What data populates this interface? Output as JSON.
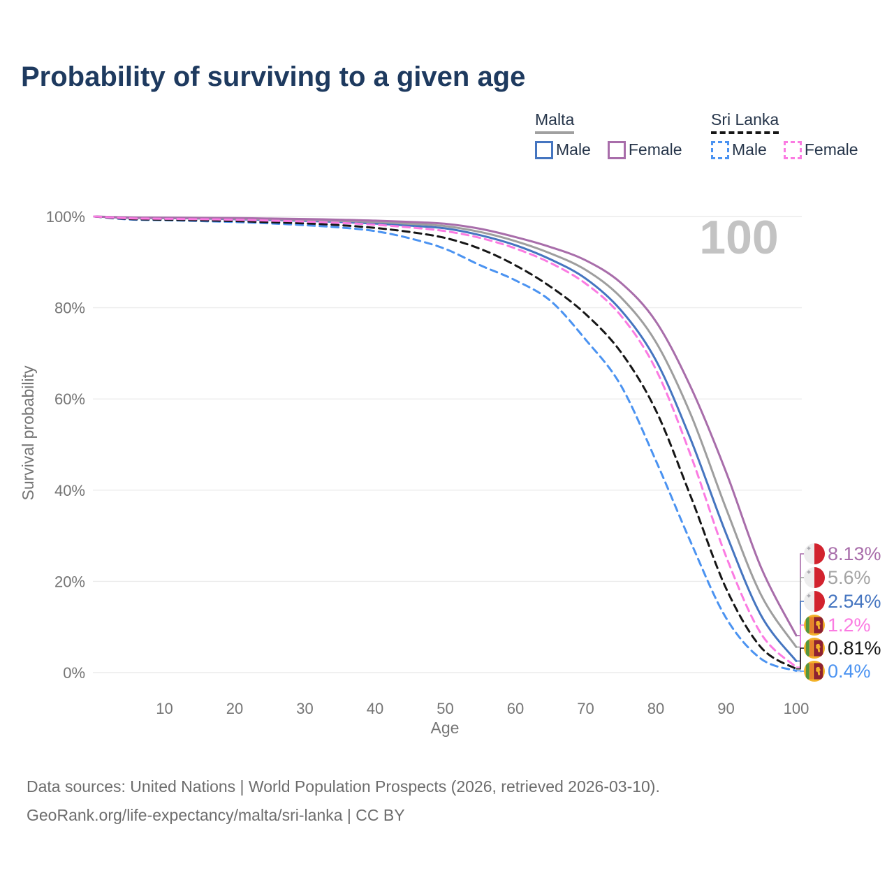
{
  "title": "Probability of surviving to a given age",
  "watermark_age": "100",
  "legend": {
    "groups": [
      {
        "label": "Malta",
        "underline": "solid-gray",
        "items": [
          {
            "label": "Male",
            "color": "#4575c0",
            "dash": false
          },
          {
            "label": "Female",
            "color": "#a86daa",
            "dash": false
          }
        ]
      },
      {
        "label": "Sri Lanka",
        "underline": "dashed-black",
        "items": [
          {
            "label": "Male",
            "color": "#4b93f1",
            "dash": true
          },
          {
            "label": "Female",
            "color": "#fb7be2",
            "dash": true
          }
        ]
      }
    ]
  },
  "axes": {
    "y_label": "Survival probability",
    "x_label": "Age",
    "y_ticks": [
      "100%",
      "80%",
      "60%",
      "40%",
      "20%",
      "0%"
    ],
    "x_ticks": [
      10,
      20,
      30,
      40,
      50,
      60,
      70,
      80,
      90,
      100
    ]
  },
  "end_labels": [
    {
      "value": "8.13%",
      "color": "#a86daa",
      "flag": "malta"
    },
    {
      "value": "5.6%",
      "color": "#a3a3a3",
      "flag": "malta"
    },
    {
      "value": "2.54%",
      "color": "#4575c0",
      "flag": "malta"
    },
    {
      "value": "1.2%",
      "color": "#fb7be2",
      "flag": "sri-lanka"
    },
    {
      "value": "0.81%",
      "color": "#161616",
      "flag": "sri-lanka"
    },
    {
      "value": "0.4%",
      "color": "#4b93f1",
      "flag": "sri-lanka"
    }
  ],
  "footer": {
    "line1": "Data sources: United Nations | World Population Prospects (2026, retrieved 2026-03-10).",
    "line2": "GeoRank.org/life-expectancy/malta/sri-lanka | CC BY"
  },
  "chart_data": {
    "type": "line",
    "title": "Probability of surviving to a given age",
    "xlabel": "Age",
    "ylabel": "Survival probability",
    "xlim": [
      0,
      100
    ],
    "ylim": [
      0,
      100
    ],
    "grid": "horizontal",
    "legend_position": "top-right",
    "annotation": "values shown at age 100",
    "x": [
      0,
      5,
      10,
      15,
      20,
      25,
      30,
      35,
      40,
      45,
      50,
      55,
      60,
      65,
      70,
      75,
      80,
      85,
      90,
      95,
      100
    ],
    "series": [
      {
        "name": "Malta Female",
        "color": "#a86daa",
        "style": "solid",
        "end_value_at_100": "8.13%",
        "values": [
          100,
          99.8,
          99.75,
          99.7,
          99.65,
          99.55,
          99.45,
          99.3,
          99.1,
          98.8,
          98.4,
          97.3,
          95.5,
          93.3,
          90.4,
          85.5,
          77.0,
          62.5,
          44.0,
          23.0,
          8.13
        ]
      },
      {
        "name": "Malta",
        "color": "#9e9e9e",
        "style": "solid",
        "end_value_at_100": "5.6%",
        "values": [
          100,
          99.75,
          99.7,
          99.6,
          99.5,
          99.4,
          99.25,
          99.05,
          98.8,
          98.4,
          97.9,
          96.6,
          94.6,
          91.9,
          88.3,
          82.3,
          72.5,
          56.5,
          36.0,
          17.0,
          5.6
        ]
      },
      {
        "name": "Malta Male",
        "color": "#4575c0",
        "style": "solid",
        "end_value_at_100": "2.54%",
        "values": [
          100,
          99.7,
          99.65,
          99.55,
          99.4,
          99.25,
          99.05,
          98.8,
          98.45,
          98.0,
          97.4,
          95.9,
          93.7,
          90.6,
          86.4,
          79.5,
          68.5,
          51.0,
          30.5,
          12.5,
          2.54
        ]
      },
      {
        "name": "Sri Lanka Female",
        "color": "#fb7be2",
        "style": "dashed",
        "end_value_at_100": "1.2%",
        "values": [
          100,
          99.6,
          99.5,
          99.4,
          99.3,
          99.1,
          98.9,
          98.6,
          98.2,
          97.6,
          96.8,
          95.3,
          93.0,
          89.8,
          85.3,
          78.3,
          66.5,
          47.5,
          25.5,
          8.5,
          1.2
        ]
      },
      {
        "name": "Sri Lanka",
        "color": "#161616",
        "style": "dashed",
        "end_value_at_100": "0.81%",
        "values": [
          100,
          99.45,
          99.3,
          99.15,
          99.0,
          98.75,
          98.5,
          98.1,
          97.5,
          96.6,
          95.3,
          92.9,
          89.3,
          84.6,
          78.6,
          70.3,
          57.5,
          38.5,
          18.5,
          5.5,
          0.81
        ]
      },
      {
        "name": "Sri Lanka Male",
        "color": "#4b93f1",
        "style": "dashed",
        "end_value_at_100": "0.4%",
        "values": [
          100,
          99.35,
          99.2,
          99.0,
          98.8,
          98.5,
          98.1,
          97.6,
          96.8,
          95.2,
          92.9,
          89.3,
          86.0,
          81.5,
          73.0,
          63.0,
          46.5,
          28.5,
          12.0,
          3.0,
          0.4
        ]
      }
    ]
  }
}
